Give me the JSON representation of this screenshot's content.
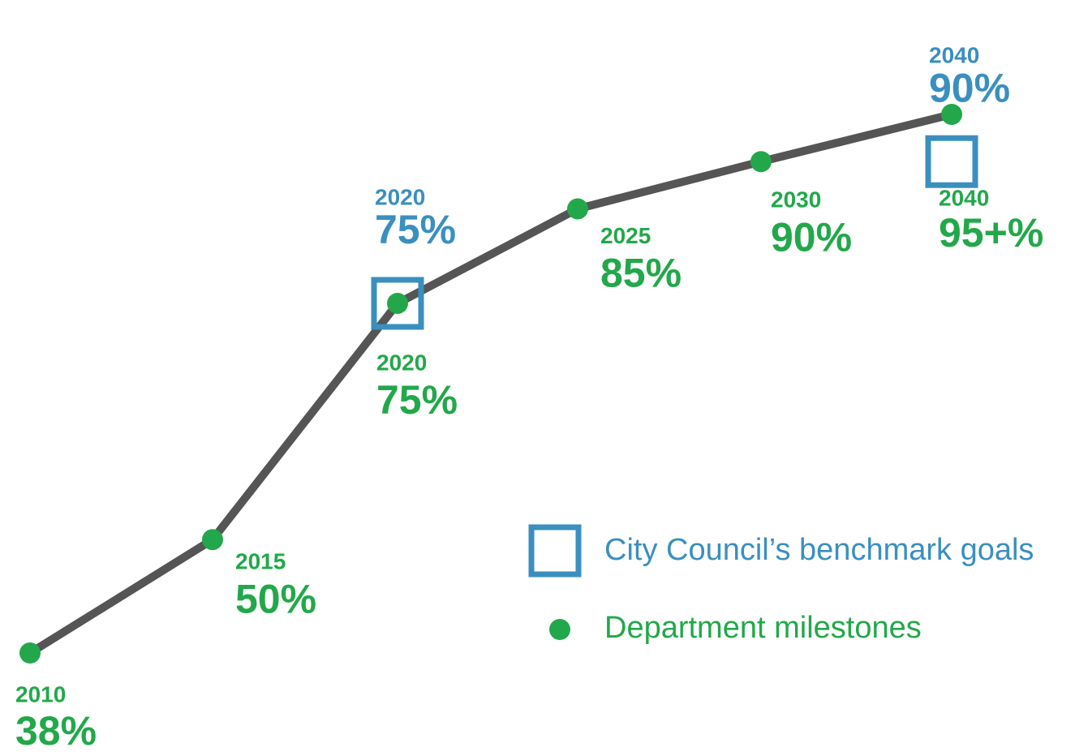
{
  "chart_data": {
    "type": "line",
    "categories": [
      "2010",
      "2015",
      "2020",
      "2025",
      "2030",
      "2040"
    ],
    "series": [
      {
        "name": "Department milestones",
        "color": "#22a84a",
        "values": [
          38,
          50,
          75,
          85,
          90,
          95
        ],
        "value_labels": [
          "38%",
          "50%",
          "75%",
          "85%",
          "90%",
          "95+%"
        ]
      },
      {
        "name": "City Council’s benchmark goals",
        "color": "#3a8fbf",
        "values": [
          null,
          null,
          75,
          null,
          null,
          90
        ],
        "value_labels": [
          null,
          null,
          "75%",
          null,
          null,
          "90%"
        ]
      }
    ],
    "line_color": "#555555",
    "legend": "lower right"
  }
}
